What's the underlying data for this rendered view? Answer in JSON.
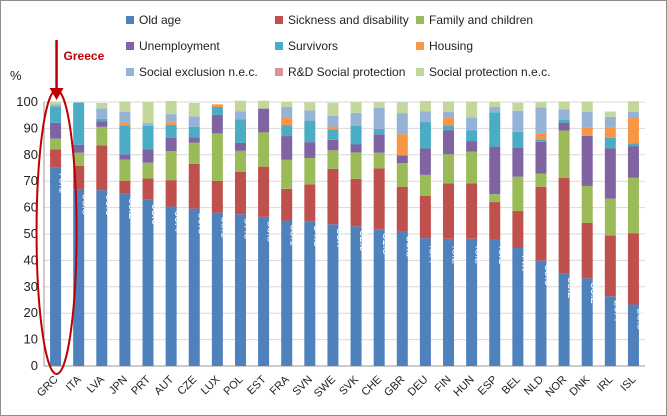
{
  "chart_data": {
    "type": "bar",
    "stacked": true,
    "unit": "%",
    "ylim": [
      0,
      100
    ],
    "yticks": [
      0,
      10,
      20,
      30,
      40,
      50,
      60,
      70,
      80,
      90,
      100
    ],
    "grid": true,
    "legend_position": "top",
    "categories": [
      "GRC",
      "ITA",
      "LVA",
      "JPN",
      "PRT",
      "AUT",
      "CZE",
      "LUX",
      "POL",
      "EST",
      "FRA",
      "SVN",
      "SWE",
      "SVK",
      "CHE",
      "GBR",
      "DEU",
      "FIN",
      "HUN",
      "ESP",
      "BEL",
      "NLD",
      "NOR",
      "DNK",
      "IRL",
      "ISL"
    ],
    "series": [
      {
        "name": "Old age",
        "color": "#4f81bd",
        "values": [
          75.1,
          66.8,
          66.6,
          65.2,
          63.0,
          60.4,
          59.6,
          58.1,
          57.5,
          56.5,
          55.1,
          54.8,
          53.7,
          52.9,
          51.8,
          50.8,
          48.4,
          48.2,
          48.2,
          48.1,
          44.7,
          39.9,
          35.2,
          33.2,
          26.4,
          23.3
        ]
      },
      {
        "name": "Sickness and disability",
        "color": "#c0504d",
        "values": [
          7,
          9,
          17,
          5,
          8,
          10,
          17,
          12,
          16,
          19,
          12,
          14,
          21,
          18,
          23,
          17,
          16,
          21,
          21,
          14,
          14,
          28,
          36,
          21,
          23,
          27
        ]
      },
      {
        "name": "Family and children",
        "color": "#9bbb59",
        "values": [
          4,
          5,
          7,
          8,
          6,
          11,
          8,
          18,
          8,
          13,
          11,
          10,
          7,
          10,
          6,
          9,
          8,
          11,
          12,
          3,
          13,
          5,
          18,
          14,
          14,
          21
        ]
      },
      {
        "name": "Unemployment",
        "color": "#8064a2",
        "values": [
          6,
          3,
          2,
          2,
          5,
          5,
          2,
          7,
          3,
          9,
          9,
          6,
          4,
          3,
          7,
          3,
          10,
          9,
          4,
          18,
          11,
          12,
          3,
          19,
          19,
          12
        ]
      },
      {
        "name": "Survivors",
        "color": "#4bacc6",
        "values": [
          6,
          16,
          1,
          11,
          9,
          5,
          4,
          3,
          9,
          0,
          4,
          8,
          4,
          7,
          2,
          0,
          10,
          2,
          4,
          13,
          6,
          1,
          1,
          0,
          4,
          1
        ]
      },
      {
        "name": "Housing",
        "color": "#f79646",
        "values": [
          0,
          0,
          0,
          1,
          0,
          1,
          0,
          1,
          0,
          0,
          3,
          0,
          1,
          0,
          0,
          8,
          0,
          3,
          0,
          0,
          0,
          2,
          0,
          3,
          4,
          10
        ]
      },
      {
        "name": "Social exclusion n.e.c.",
        "color": "#95b3d7",
        "values": [
          1,
          0,
          4,
          4,
          1,
          3,
          4,
          0,
          3,
          0,
          4,
          4,
          4,
          5,
          8,
          8,
          4,
          2,
          5,
          2,
          8,
          10,
          4,
          6,
          4,
          2
        ]
      },
      {
        "name": "R&D Social protection",
        "color": "#d99694",
        "values": [
          0,
          0,
          0,
          0,
          0,
          0,
          0,
          0,
          0,
          0,
          0,
          0,
          0,
          0,
          0,
          0,
          0,
          0,
          0,
          0,
          0,
          0,
          0,
          0,
          0,
          0
        ]
      },
      {
        "name": "Social protection n.e.c.",
        "color": "#c3d69b",
        "values": [
          1,
          0,
          2,
          4,
          8,
          5,
          5,
          0,
          4,
          3,
          2,
          3,
          5,
          4,
          2,
          4,
          4,
          4,
          6,
          2,
          3,
          2,
          3,
          4,
          2,
          4
        ]
      }
    ],
    "data_labels": [
      "75.1",
      "66.8",
      "66.6",
      "65.2",
      "63.0",
      "60.4",
      "59.6",
      "58.1",
      "57.5",
      "56.5",
      "55.1",
      "54.8",
      "53.7",
      "52.9",
      "51.8",
      "50.8",
      "48.4",
      "48.2",
      "48.2",
      "48.1",
      "44.7",
      "39.9",
      "35.2",
      "33.2",
      "26.4",
      "23.3"
    ],
    "annotation": {
      "text": "Greece",
      "target": "GRC",
      "marker_color": "#c00000"
    }
  }
}
